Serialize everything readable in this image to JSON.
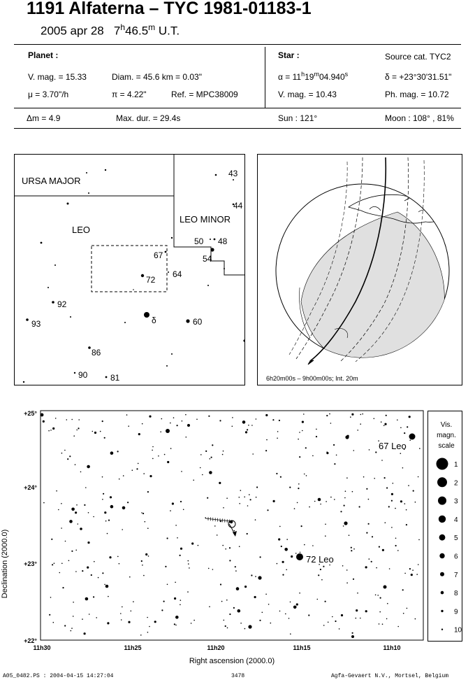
{
  "header": {
    "title": "1191 Alfaterna  –  TYC 1981-01183-1",
    "date": "2005 apr 28",
    "time_h": "7",
    "time_h_sup": "h",
    "time_m": "46.5",
    "time_m_sup": "m",
    "time_ut": " U.T."
  },
  "planet": {
    "heading": "Planet :",
    "vmag": "V. mag. = 15.33",
    "diam": "Diam. = 45.6 km = 0.03\"",
    "mu": "μ =  3.70\"/h",
    "pi": "π =  4.22\"",
    "ref": "Ref. = MPC38009"
  },
  "star": {
    "heading": "Star :",
    "source": "Source cat.  TYC2",
    "alpha_a": "α = 11",
    "alpha_h": "h",
    "alpha_b": "19",
    "alpha_m": "m",
    "alpha_c": "04.940",
    "alpha_s": "s",
    "delta": "δ = +23°30'31.51\"",
    "vmag": "V. mag. = 10.43",
    "phmag": "Ph. mag. = 10.72"
  },
  "summary": {
    "dm": "Δm = 4.9",
    "maxdur": "Max. dur. = 29.4s",
    "sun": "Sun : 121°",
    "moon": "Moon : 108° , 81%"
  },
  "constellation_map": {
    "labels": {
      "ursa_major": "URSA MAJOR",
      "leo": "LEO",
      "leo_minor": "LEO MINOR"
    },
    "star_labels": [
      "43",
      "44",
      "50",
      "48",
      "54",
      "67",
      "72",
      "64",
      "92",
      "93",
      "δ",
      "60",
      "86",
      "90",
      "81"
    ]
  },
  "globe": {
    "caption": "6h20m00s –  9h00m00s; Int. 20m"
  },
  "starchart": {
    "ylabel": "Declination (2000.0)",
    "xlabel": "Right ascension (2000.0)",
    "y_ticks": [
      "+25°",
      "+24°",
      "+23°",
      "+22°"
    ],
    "x_ticks": [
      "11h30",
      "11h25",
      "11h20",
      "11h15",
      "11h10"
    ],
    "named_stars": [
      "67 Leo",
      "72 Leo"
    ]
  },
  "scale": {
    "title_line1": "Vis.",
    "title_line2": "magn.",
    "title_line3": "scale",
    "mags": [
      "1",
      "2",
      "3",
      "4",
      "5",
      "6",
      "7",
      "8",
      "9",
      "10"
    ]
  },
  "footer": {
    "left": "A05_0482.PS : 2004-04-15 14:27:04",
    "center": "3478",
    "right": "Agfa-Gevaert N.V., Mortsel, Belgium"
  }
}
